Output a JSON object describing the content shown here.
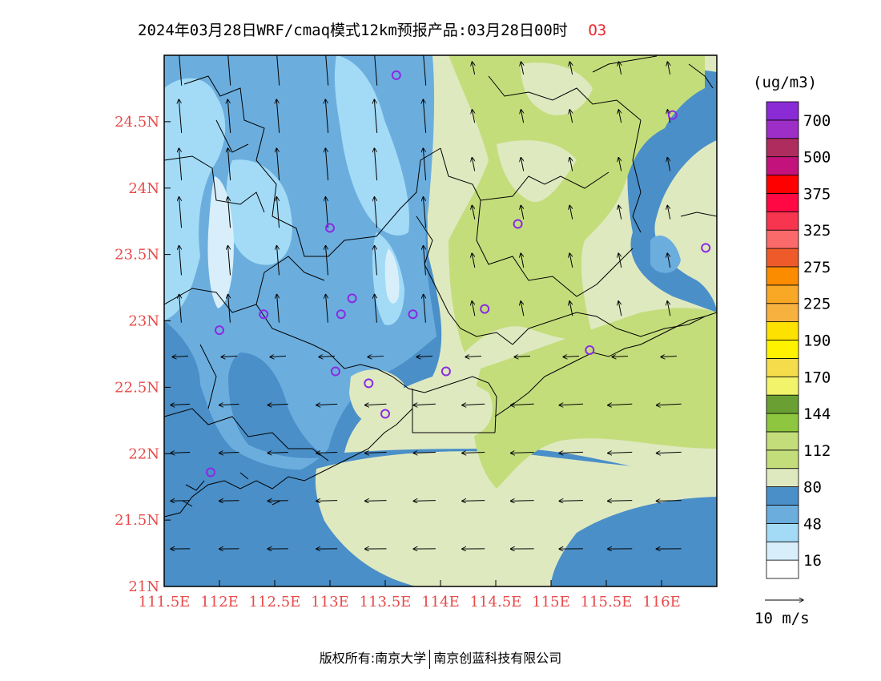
{
  "title": {
    "text": "2024年03月28日WRF/cmaq模式12km预报产品:03月28日00时",
    "variable": "O3"
  },
  "map": {
    "lon_range": [
      111.5,
      116.5
    ],
    "lat_range": [
      21.0,
      25.0
    ],
    "lon_ticks": [
      {
        "value": 111.5,
        "label": "111.5E"
      },
      {
        "value": 112,
        "label": "112E"
      },
      {
        "value": 112.5,
        "label": "112.5E"
      },
      {
        "value": 113,
        "label": "113E"
      },
      {
        "value": 113.5,
        "label": "113.5E"
      },
      {
        "value": 114,
        "label": "114E"
      },
      {
        "value": 114.5,
        "label": "114.5E"
      },
      {
        "value": 115,
        "label": "115E"
      },
      {
        "value": 115.5,
        "label": "115.5E"
      },
      {
        "value": 116,
        "label": "116E"
      }
    ],
    "lat_ticks": [
      {
        "value": 21,
        "label": "21N"
      },
      {
        "value": 21.5,
        "label": "21.5N"
      },
      {
        "value": 22,
        "label": "22N"
      },
      {
        "value": 22.5,
        "label": "22.5N"
      },
      {
        "value": 23,
        "label": "23N"
      },
      {
        "value": 23.5,
        "label": "23.5N"
      },
      {
        "value": 24,
        "label": "24N"
      },
      {
        "value": 24.5,
        "label": "24.5N"
      }
    ],
    "stations": [
      {
        "lon": 113.6,
        "lat": 24.85
      },
      {
        "lon": 116.1,
        "lat": 24.55
      },
      {
        "lon": 113.0,
        "lat": 23.7
      },
      {
        "lon": 114.7,
        "lat": 23.73
      },
      {
        "lon": 116.4,
        "lat": 23.55
      },
      {
        "lon": 113.2,
        "lat": 23.17
      },
      {
        "lon": 112.4,
        "lat": 23.05
      },
      {
        "lon": 113.1,
        "lat": 23.05
      },
      {
        "lon": 113.75,
        "lat": 23.05
      },
      {
        "lon": 114.4,
        "lat": 23.09
      },
      {
        "lon": 112.0,
        "lat": 22.93
      },
      {
        "lon": 115.35,
        "lat": 22.78
      },
      {
        "lon": 113.05,
        "lat": 22.62
      },
      {
        "lon": 114.05,
        "lat": 22.62
      },
      {
        "lon": 113.35,
        "lat": 22.53
      },
      {
        "lon": 113.5,
        "lat": 22.3
      },
      {
        "lon": 111.92,
        "lat": 21.86
      }
    ],
    "colors": {
      "c16": "#d8effb",
      "c48": "#a3dbf7",
      "c64": "#6baede",
      "c80": "#4a8fc8",
      "c96": "#dfe9c0",
      "c112": "#c4dd7b"
    }
  },
  "colorbar": {
    "unit": "(ug/m3)",
    "segments": [
      "#ffffff",
      "#d8effb",
      "#a3dbf7",
      "#6baede",
      "#4a8fc8",
      "#dfe9c0",
      "#c4dd7b",
      "#c4dd7b",
      "#8ec63f",
      "#6a9f33",
      "#f2f36b",
      "#f5dc4a",
      "#fff200",
      "#fde100",
      "#f7b13e",
      "#f9a825",
      "#fb8c00",
      "#ee5a2a",
      "#fb6a6a",
      "#f8354f",
      "#ff0844",
      "#fe0000",
      "#c4127c",
      "#ae2d5e",
      "#9d2fc8",
      "#8b2bd6"
    ],
    "labels": [
      "16",
      "48",
      "80",
      "112",
      "144",
      "170",
      "190",
      "225",
      "275",
      "325",
      "375",
      "500",
      "700"
    ]
  },
  "wind_legend": {
    "label": "10 m/s"
  },
  "footer": {
    "left": "版权所有:南京大学",
    "right": "南京创蓝科技有限公司"
  }
}
